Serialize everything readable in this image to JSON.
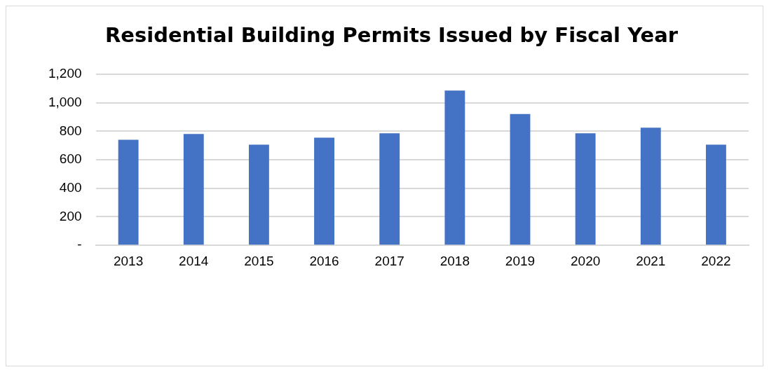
{
  "chart_data": {
    "type": "bar",
    "title": "Residential Building Permits Issued by Fiscal Year",
    "categories": [
      "2013",
      "2014",
      "2015",
      "2016",
      "2017",
      "2018",
      "2019",
      "2020",
      "2021",
      "2022"
    ],
    "values": [
      740,
      780,
      705,
      755,
      785,
      1085,
      920,
      785,
      825,
      705
    ],
    "color": "#4472c4",
    "ylim": [
      0,
      1200
    ],
    "yticks": [
      {
        "value": 0,
        "label": "-"
      },
      {
        "value": 200,
        "label": "200"
      },
      {
        "value": 400,
        "label": "400"
      },
      {
        "value": 600,
        "label": "600"
      },
      {
        "value": 800,
        "label": "800"
      },
      {
        "value": 1000,
        "label": "1,000"
      },
      {
        "value": 1200,
        "label": "1,200"
      }
    ],
    "grid": "y",
    "legend": false
  }
}
